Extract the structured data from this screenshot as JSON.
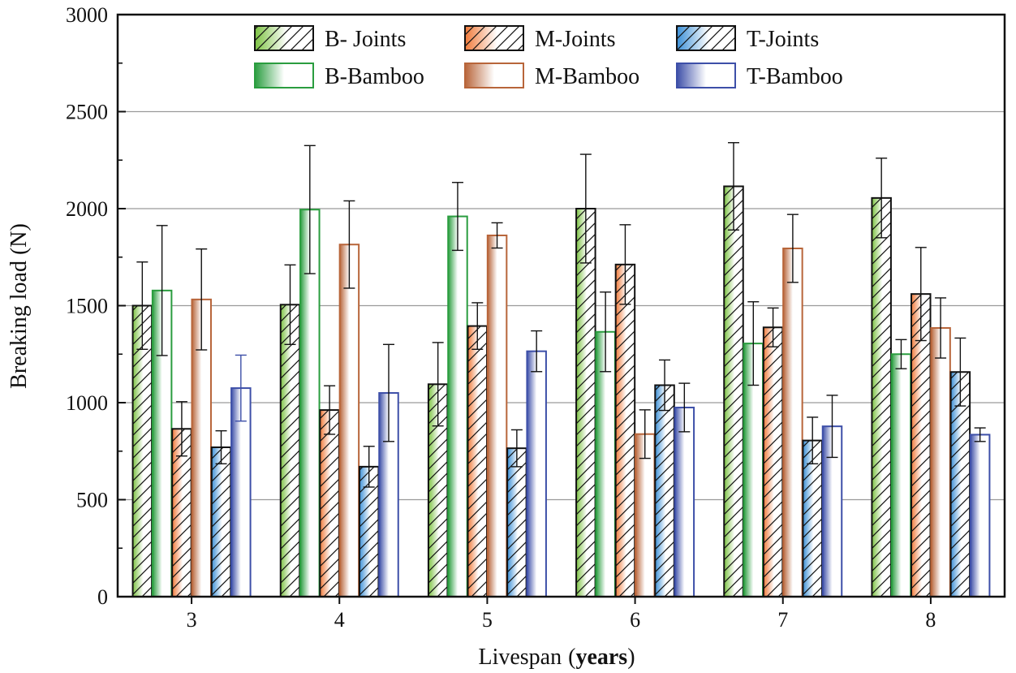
{
  "chart_data": {
    "type": "bar",
    "title": "",
    "xlabel": "Livespan",
    "xlabel_unit": "years",
    "xlabel_paren_open": "(",
    "xlabel_paren_close": ")",
    "ylabel": "Breaking load (N)",
    "ylim": [
      0,
      3000
    ],
    "yticks": [
      0,
      500,
      1000,
      1500,
      2000,
      2500,
      3000
    ],
    "grid": true,
    "legend_position": "top",
    "categories": [
      "3",
      "4",
      "5",
      "6",
      "7",
      "8"
    ],
    "series": [
      {
        "name": "B- Joints",
        "style": "hatch",
        "color": "#7cc242",
        "values": [
          1500,
          1505,
          1095,
          2000,
          2115,
          2055
        ],
        "errors": [
          225,
          205,
          215,
          280,
          225,
          205
        ]
      },
      {
        "name": "B-Bamboo",
        "style": "gradient",
        "color": "#2a9d3f",
        "values": [
          1578,
          1995,
          1960,
          1365,
          1305,
          1250
        ],
        "errors": [
          335,
          330,
          175,
          205,
          215,
          75
        ]
      },
      {
        "name": "M-Joints",
        "style": "hatch",
        "color": "#f07a3a",
        "values": [
          865,
          962,
          1395,
          1712,
          1388,
          1560
        ],
        "errors": [
          140,
          125,
          120,
          205,
          100,
          240
        ]
      },
      {
        "name": "M-Bamboo",
        "style": "gradient",
        "color": "#b8653a",
        "values": [
          1532,
          1815,
          1862,
          838,
          1795,
          1385
        ],
        "errors": [
          260,
          225,
          65,
          125,
          175,
          155
        ]
      },
      {
        "name": "T-Joints",
        "style": "hatch",
        "color": "#3b8fd6",
        "values": [
          770,
          670,
          765,
          1090,
          805,
          1158
        ],
        "errors": [
          85,
          105,
          95,
          130,
          120,
          175
        ]
      },
      {
        "name": "T-Bamboo",
        "style": "gradient",
        "color": "#3d4fa8",
        "values": [
          1075,
          1050,
          1265,
          975,
          878,
          835
        ],
        "errors": [
          170,
          250,
          105,
          125,
          160,
          35
        ]
      }
    ]
  },
  "colors": {
    "axis": "#111111",
    "grid": "#9a9a9a",
    "hatch_line": "#111111",
    "gradient_light": "#ffffff"
  }
}
